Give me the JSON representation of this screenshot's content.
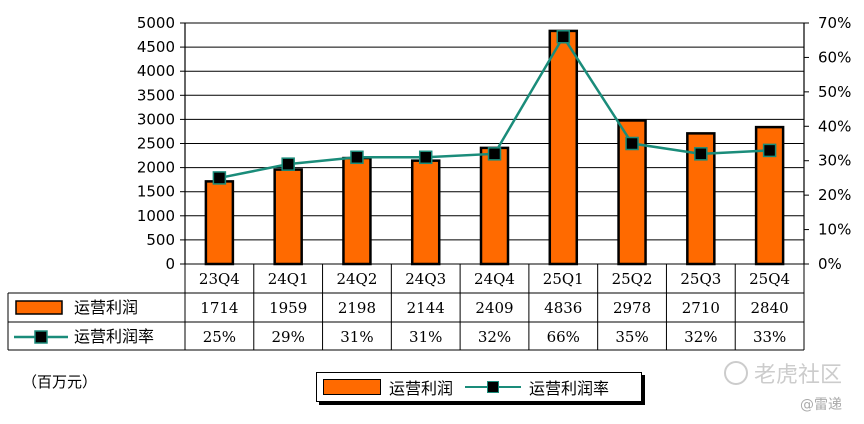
{
  "chart_data": {
    "type": "bar",
    "categories": [
      "23Q4",
      "24Q1",
      "24Q2",
      "24Q3",
      "24Q4",
      "25Q1",
      "25Q2",
      "25Q3",
      "25Q4"
    ],
    "series": [
      {
        "name": "运营利润",
        "kind": "bar",
        "axis": "left",
        "values": [
          1714,
          1959,
          2198,
          2144,
          2409,
          4836,
          2978,
          2710,
          2840
        ],
        "labels": [
          "1714",
          "1959",
          "2198",
          "2144",
          "2409",
          "4836",
          "2978",
          "2710",
          "2840"
        ],
        "color": "#ff6a00"
      },
      {
        "name": "运营利润率",
        "kind": "line",
        "axis": "right",
        "values": [
          25,
          29,
          31,
          31,
          32,
          66,
          35,
          32,
          33
        ],
        "labels": [
          "25%",
          "29%",
          "31%",
          "31%",
          "32%",
          "66%",
          "35%",
          "32%",
          "33%"
        ],
        "color": "#1a8c7a"
      }
    ],
    "left_axis": {
      "range": [
        0,
        5000
      ],
      "ticks": [
        "0",
        "500",
        "1000",
        "1500",
        "2000",
        "2500",
        "3000",
        "3500",
        "4000",
        "4500",
        "5000"
      ]
    },
    "right_axis": {
      "range": [
        0,
        70
      ],
      "ticks": [
        "0%",
        "10%",
        "20%",
        "30%",
        "40%",
        "50%",
        "60%",
        "70%"
      ]
    },
    "unit_label": "（百万元）",
    "legend": {
      "bar_label": "运营利润",
      "line_label": "运营利润率",
      "position": "bottom-center"
    }
  },
  "watermark": {
    "text": "老虎社区",
    "credit": "@雷递"
  }
}
